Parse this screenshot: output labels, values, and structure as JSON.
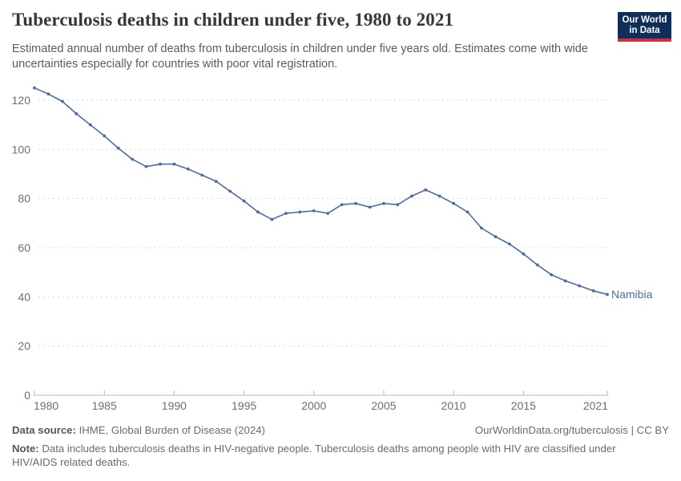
{
  "header": {
    "title": "Tuberculosis deaths in children under five, 1980 to 2021",
    "subtitle": "Estimated annual number of deaths from tuberculosis in children under five years old. Estimates come with wide uncertainties especially for countries with poor vital registration.",
    "logo_line1": "Our World",
    "logo_line2": "in Data"
  },
  "chart_data": {
    "type": "line",
    "title": "Tuberculosis deaths in children under five, 1980 to 2021",
    "xlabel": "",
    "ylabel": "",
    "xlim": [
      1980,
      2021
    ],
    "ylim": [
      0,
      130
    ],
    "x_ticks": [
      1980,
      1985,
      1990,
      1995,
      2000,
      2005,
      2010,
      2015,
      2021
    ],
    "y_ticks": [
      0,
      20,
      40,
      60,
      80,
      100,
      120
    ],
    "grid": "horizontal-dashed",
    "legend_position": "end-of-line-label",
    "series": [
      {
        "name": "Namibia",
        "color": "#4d6ba3",
        "x": [
          1980,
          1981,
          1982,
          1983,
          1984,
          1985,
          1986,
          1987,
          1988,
          1989,
          1990,
          1991,
          1992,
          1993,
          1994,
          1995,
          1996,
          1997,
          1998,
          1999,
          2000,
          2001,
          2002,
          2003,
          2004,
          2005,
          2006,
          2007,
          2008,
          2009,
          2010,
          2011,
          2012,
          2013,
          2014,
          2015,
          2016,
          2017,
          2018,
          2019,
          2020,
          2021
        ],
        "values": [
          125,
          122.5,
          119.5,
          114.5,
          110,
          105.5,
          100.5,
          96,
          93,
          94,
          94,
          92,
          89.5,
          87,
          83,
          79,
          74.5,
          71.5,
          74,
          74.5,
          75,
          74,
          77.5,
          78,
          76.5,
          78,
          77.5,
          81,
          83.5,
          81,
          78,
          74.5,
          68,
          64.5,
          61.5,
          57.5,
          53,
          49,
          46.5,
          44.5,
          42.5,
          41
        ]
      }
    ]
  },
  "footer": {
    "source_label": "Data source:",
    "source_text": "IHME, Global Burden of Disease (2024)",
    "license_text": "OurWorldinData.org/tuberculosis | CC BY",
    "note_label": "Note:",
    "note_text": "Data includes tuberculosis deaths in HIV-negative people. Tuberculosis deaths among people with HIV are classified under HIV/AIDS related deaths."
  },
  "colors": {
    "line": "#4d6ba3",
    "end_label": "#4d6ba3",
    "gridline": "#dadada",
    "axis": "#b8b8b8",
    "tick_text": "#6e6e6e",
    "title_text": "#373737",
    "subtitle_text": "#5b5b5b",
    "footer_text": "#6b6b6b",
    "logo_bg": "#0f2e5a",
    "logo_stripe": "#d12b3d"
  }
}
